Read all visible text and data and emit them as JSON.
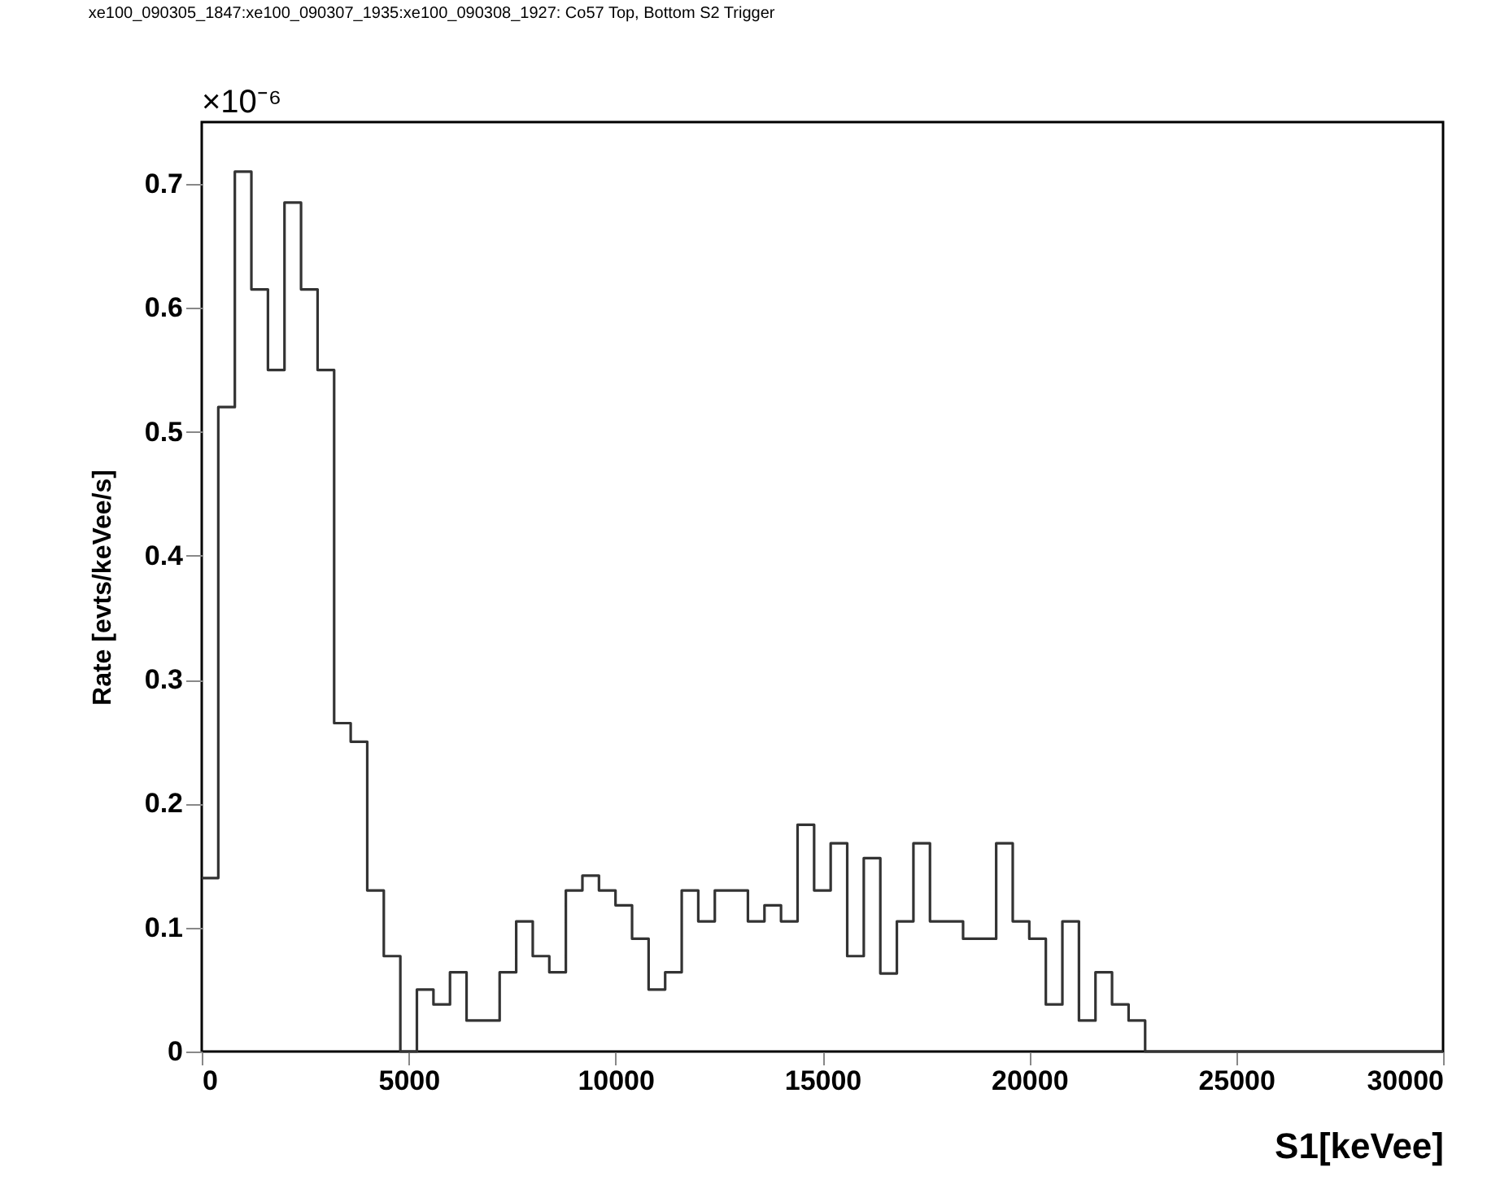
{
  "chart_data": {
    "type": "histogram",
    "title": "xe100_090305_1847:xe100_090307_1935:xe100_090308_1927: Co57 Top, Bottom S2 Trigger",
    "xlabel": "S1[keVee]",
    "ylabel": "Rate [evts/keVee/s]",
    "annotations": [
      "×10⁻⁶"
    ],
    "bins": [
      0,
      400,
      800,
      1200,
      1600,
      2000,
      2400,
      2800,
      3200,
      3600,
      4000,
      4400,
      4800,
      5200,
      5600,
      6000,
      6400,
      6800,
      7200,
      7600,
      8000,
      8400,
      8800,
      9200,
      9600,
      10000,
      10400,
      10800,
      11200,
      11600,
      12000,
      12400,
      12800,
      13200,
      13600,
      14000,
      14400,
      14800,
      15200,
      15600,
      16000,
      16400,
      16800,
      17200,
      17600,
      18000,
      18400,
      18800,
      19200,
      19600,
      20000,
      20400,
      20800,
      21200,
      21600,
      22000,
      22400,
      22800,
      23200,
      23600,
      24000,
      24400,
      24800,
      25200,
      25600,
      26000,
      26400,
      26800,
      27200,
      27600,
      28000,
      28400,
      28800,
      29200,
      29600,
      30000
    ],
    "values": [
      0.14,
      0.52,
      0.71,
      0.615,
      0.55,
      0.685,
      0.615,
      0.55,
      0.265,
      0.25,
      0.13,
      0.077,
      0,
      0.05,
      0.038,
      0.064,
      0.025,
      0.025,
      0.064,
      0.105,
      0.077,
      0.064,
      0.13,
      0.142,
      0.13,
      0.118,
      0.091,
      0.05,
      0.064,
      0.13,
      0.105,
      0.13,
      0.13,
      0.105,
      0.118,
      0.105,
      0.183,
      0.13,
      0.168,
      0.077,
      0.156,
      0.063,
      0.105,
      0.168,
      0.105,
      0.105,
      0.091,
      0.091,
      0.168,
      0.105,
      0.091,
      0.038,
      0.105,
      0.025,
      0.064,
      0.038,
      0.025,
      0,
      0,
      0,
      0,
      0,
      0,
      0,
      0,
      0,
      0,
      0,
      0,
      0,
      0,
      0,
      0,
      0,
      0
    ],
    "color": "#333333",
    "xlim": [
      0,
      30000
    ],
    "xticks": [
      0,
      5000,
      10000,
      15000,
      20000,
      25000,
      30000
    ],
    "ylim": [
      0,
      0.75
    ],
    "yticks": [
      0,
      0.1,
      0.2,
      0.3,
      0.4,
      0.5,
      0.6,
      0.7
    ]
  }
}
